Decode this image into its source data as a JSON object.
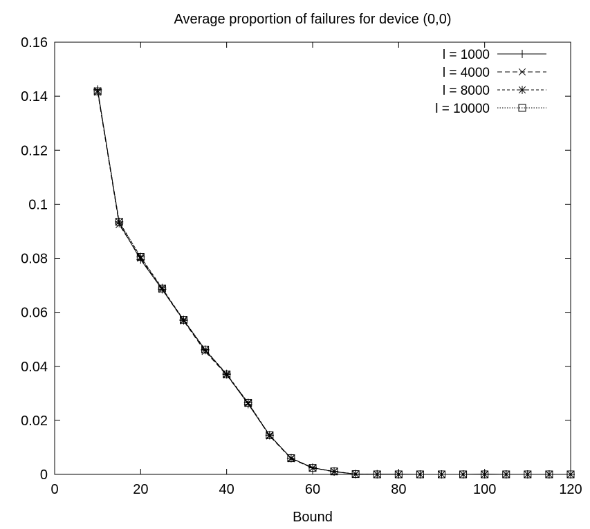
{
  "chart_data": {
    "type": "line",
    "title": "Average proportion of failures for device (0,0)",
    "xlabel": "Bound",
    "ylabel": "",
    "xlim": [
      0,
      120
    ],
    "ylim": [
      0,
      0.16
    ],
    "xticks": [
      0,
      20,
      40,
      60,
      80,
      100,
      120
    ],
    "yticks": [
      0,
      0.02,
      0.04,
      0.06,
      0.08,
      0.1,
      0.12,
      0.14,
      0.16
    ],
    "xtick_labels": [
      "0",
      "20",
      "40",
      "60",
      "80",
      "100",
      "120"
    ],
    "ytick_labels": [
      "0",
      "0.02",
      "0.04",
      "0.06",
      "0.08",
      "0.1",
      "0.12",
      "0.14",
      "0.16"
    ],
    "grid": false,
    "legend_position": "top-right",
    "x": [
      10,
      15,
      20,
      25,
      30,
      35,
      40,
      45,
      50,
      55,
      60,
      65,
      70,
      75,
      80,
      85,
      90,
      95,
      100,
      105,
      110,
      115,
      120
    ],
    "series": [
      {
        "name": "l = 1000",
        "line_style": "solid",
        "marker": "plus",
        "values": [
          0.1425,
          0.093,
          0.0795,
          0.0685,
          0.057,
          0.046,
          0.037,
          0.026,
          0.0145,
          0.006,
          0.0025,
          0.001,
          0.0001,
          0.0001,
          0.0001,
          0.0,
          0.0,
          0.0,
          0.0001,
          0.0,
          0.0,
          0.0,
          0.0
        ]
      },
      {
        "name": "l = 4000",
        "line_style": "dashed",
        "marker": "cross",
        "values": [
          0.1415,
          0.0925,
          0.08,
          0.0685,
          0.0568,
          0.0455,
          0.0368,
          0.0262,
          0.0142,
          0.0058,
          0.0023,
          0.001,
          0.0001,
          0.0,
          0.0,
          0.0,
          0.0,
          0.0,
          0.0,
          0.0,
          0.0,
          0.0,
          0.0
        ]
      },
      {
        "name": "l = 8000",
        "line_style": "short-dashed",
        "marker": "star",
        "values": [
          0.142,
          0.0935,
          0.0805,
          0.069,
          0.0572,
          0.0462,
          0.0372,
          0.0265,
          0.0145,
          0.006,
          0.0024,
          0.0011,
          0.0001,
          0.0,
          0.0,
          0.0,
          0.0,
          0.0,
          0.0,
          0.0,
          0.0,
          0.0,
          0.0
        ]
      },
      {
        "name": "l = 10000",
        "line_style": "dotted",
        "marker": "square",
        "values": [
          0.1418,
          0.0935,
          0.0805,
          0.0688,
          0.0572,
          0.0462,
          0.037,
          0.0265,
          0.0145,
          0.006,
          0.0024,
          0.0011,
          0.0001,
          0.0,
          0.0,
          0.0,
          0.0,
          0.0,
          0.0,
          0.0,
          0.0,
          0.0,
          0.0
        ]
      }
    ]
  }
}
